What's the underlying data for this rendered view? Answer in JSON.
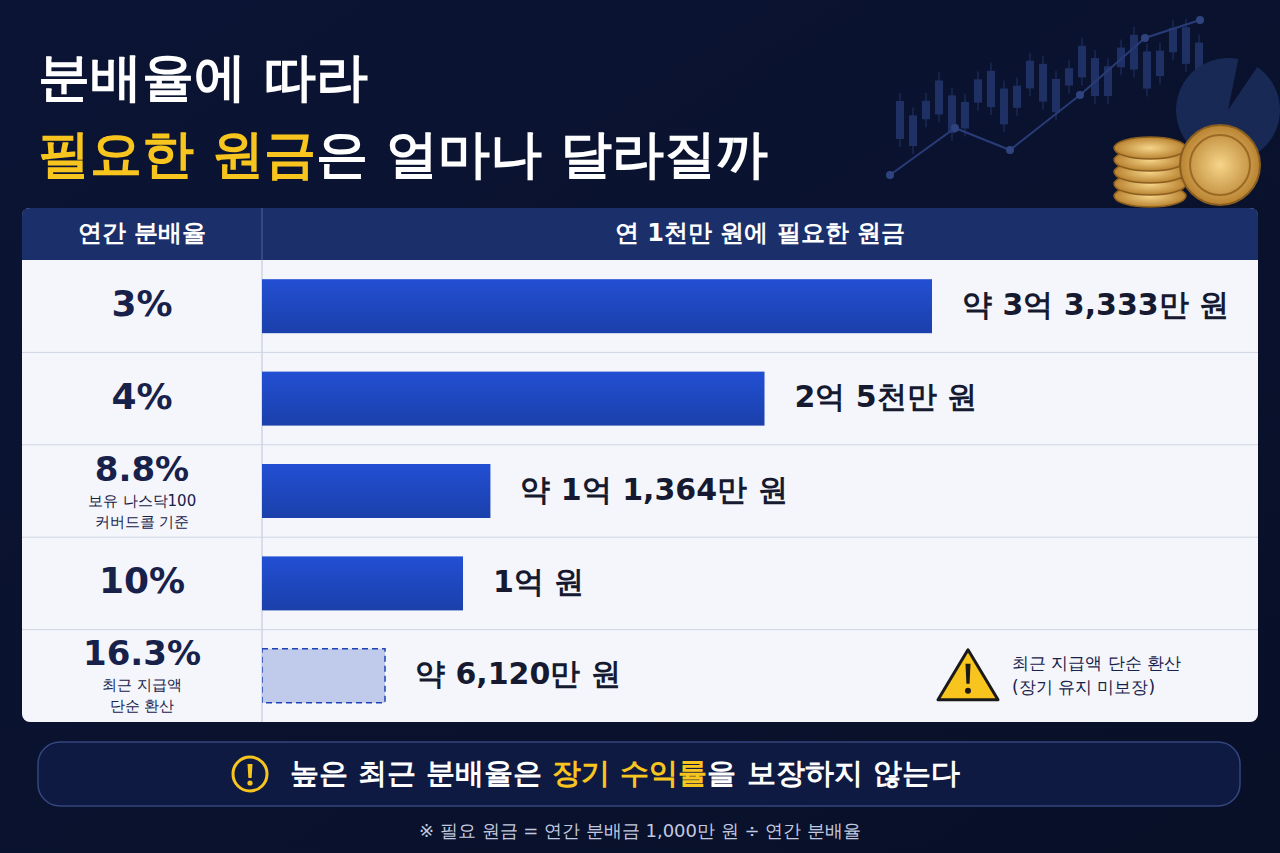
{
  "chart_data": {
    "type": "bar",
    "orientation": "horizontal",
    "title_lines": [
      "분배율에 따라",
      "필요한 원금은 얼마나 달라질까"
    ],
    "title_highlight": "필요한 원금",
    "category_header": "연간 분배율",
    "value_header": "연 1천만 원에 필요한 원금",
    "categories": [
      "3%",
      "4%",
      "8.8%",
      "10%",
      "16.3%"
    ],
    "category_notes": [
      null,
      null,
      [
        "보유 나스닥100",
        "커버드콜 기준"
      ],
      null,
      [
        "최근 지급액",
        "단순 환산"
      ]
    ],
    "values": [
      33333,
      25000,
      11364,
      10000,
      6120
    ],
    "value_labels": [
      "약 3억 3,333만 원",
      "2억 5천만 원",
      "약 1억 1,364만 원",
      "1억 원",
      "약 6,120만 원"
    ],
    "bar_notes": [
      null,
      null,
      null,
      null,
      [
        "최근 지급액 단순 환산",
        "(장기 유지 미보장)"
      ]
    ],
    "color": "#1d43b4",
    "xlim": [
      0,
      33333
    ],
    "tick_labels": false,
    "data_labels": true,
    "callout": "높은 최근 분배율은 장기 수익률을 보장하지 않는다",
    "callout_highlight": "장기 수익률",
    "footnote": "※ 필요 원금 = 연간 분배금 1,000만 원 ÷ 연간 분배율"
  }
}
